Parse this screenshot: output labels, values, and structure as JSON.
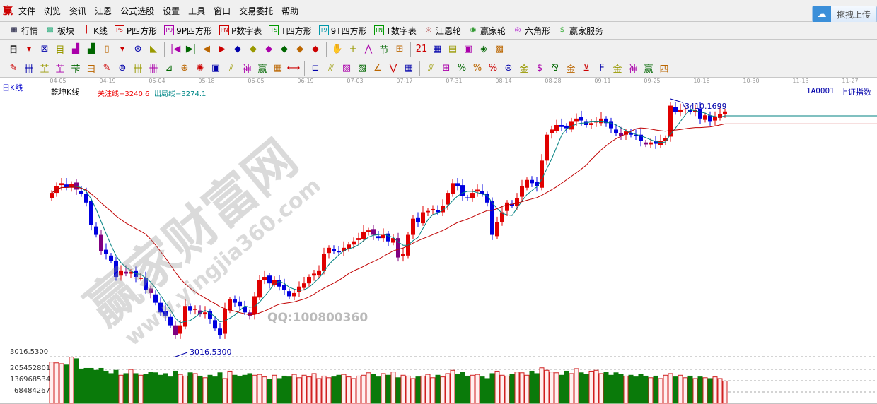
{
  "menu": {
    "logo": "赢",
    "items": [
      "文件",
      "浏览",
      "资讯",
      "江恩",
      "公式选股",
      "设置",
      "工具",
      "窗口",
      "交易委托",
      "帮助"
    ]
  },
  "upload": {
    "label": "拖拽上传",
    "icon": "cloud-icon"
  },
  "toolbar1": [
    {
      "icon": "▦",
      "label": "行情",
      "color": "#224"
    },
    {
      "icon": "▩",
      "label": "板块",
      "color": "#2a7"
    },
    {
      "icon": "┃",
      "label": "K线",
      "color": "#c00"
    },
    {
      "icon": "PS",
      "label": "P四方形",
      "color": "#c00"
    },
    {
      "icon": "P9",
      "label": "9P四方形",
      "color": "#a0a"
    },
    {
      "icon": "PN",
      "label": "P数字表",
      "color": "#c00"
    },
    {
      "icon": "TS",
      "label": "T四方形",
      "color": "#090"
    },
    {
      "icon": "T9",
      "label": "9T四方形",
      "color": "#09a"
    },
    {
      "icon": "TN",
      "label": "T数字表",
      "color": "#090"
    },
    {
      "icon": "◎",
      "label": "江恩轮",
      "color": "#a33"
    },
    {
      "icon": "◉",
      "label": "赢家轮",
      "color": "#393"
    },
    {
      "icon": "◎",
      "label": "六角形",
      "color": "#a0c"
    },
    {
      "icon": "$",
      "label": "赢家服务",
      "color": "#3a3"
    }
  ],
  "toolbar2": {
    "period": "日",
    "icons": [
      "▾",
      "⊠",
      "目",
      "▟",
      "▟",
      "▯",
      "▾",
      "⊛",
      "◣",
      "|◀",
      "▶|",
      "◀",
      "▶",
      "◆",
      "◆",
      "◆",
      "◆",
      "◆",
      "◆",
      "✋",
      "+",
      "⋀",
      "节",
      "⊞",
      "21",
      "▦",
      "▤",
      "▣",
      "◈",
      "▩"
    ]
  },
  "toolbar3": {
    "icons": [
      "✎",
      "卌",
      "芏",
      "芏",
      "芐",
      "彐",
      "✎",
      "⊜",
      "卌",
      "卌",
      "⊿",
      "⊕",
      "✺",
      "▣",
      "⫽",
      "神",
      "赢",
      "▦",
      "⟷",
      "⊏",
      "⫻",
      "▨",
      "▧",
      "∠",
      "⋁",
      "▦",
      "⫻",
      "⊞",
      "%",
      "%",
      "%",
      "⊝",
      "金",
      "$",
      "⅋",
      "金",
      "⊻",
      "F",
      "金",
      "神",
      "赢",
      "四"
    ]
  },
  "axis_dates": [
    "04-05",
    "04-19",
    "05-04",
    "05-18",
    "06-05",
    "06-19",
    "07-03",
    "07-17",
    "07-31",
    "08-14",
    "08-28",
    "09-11",
    "09-25",
    "10-16",
    "10-30",
    "11-13",
    "11-27"
  ],
  "chart_header": {
    "period_label": "日K线",
    "indicator": "乾坤K线",
    "focus_line": "关注线=3240.6",
    "exit_line": "出局线=3274.1",
    "symbol": "1A0001",
    "name": "上证指数"
  },
  "annotations": {
    "high": "3410.1699",
    "low": "3016.5300"
  },
  "volume_axis": {
    "top_label": "3016.5300",
    "ticks": [
      "205452801",
      "136968534",
      "68484267"
    ]
  },
  "watermark": {
    "title": "赢家财富网",
    "url": "www.yingjia360.com",
    "qq": "QQ:100800360"
  },
  "colors": {
    "up": "#e00000",
    "down": "#0000e0",
    "vol_up": "#d02020",
    "vol_down": "#0a7a0a",
    "ma_short": "#008080",
    "ma_long": "#c00000"
  },
  "chart_data": {
    "type": "candlestick",
    "unit": "index points",
    "closes": [
      3270,
      3280,
      3285,
      3278,
      3284,
      3275,
      3268,
      3255,
      3220,
      3205,
      3180,
      3175,
      3165,
      3140,
      3150,
      3145,
      3148,
      3140,
      3138,
      3120,
      3115,
      3100,
      3085,
      3080,
      3065,
      3050,
      3065,
      3095,
      3088,
      3090,
      3082,
      3085,
      3075,
      3060,
      3050,
      3090,
      3105,
      3100,
      3095,
      3085,
      3080,
      3110,
      3135,
      3140,
      3130,
      3135,
      3125,
      3120,
      3110,
      3115,
      3125,
      3130,
      3140,
      3145,
      3150,
      3175,
      3185,
      3180,
      3178,
      3185,
      3190,
      3195,
      3200,
      3210,
      3212,
      3205,
      3200,
      3205,
      3195,
      3200,
      3170,
      3175,
      3205,
      3230,
      3225,
      3240,
      3242,
      3245,
      3240,
      3250,
      3270,
      3285,
      3280,
      3265,
      3262,
      3270,
      3275,
      3268,
      3255,
      3205,
      3225,
      3240,
      3255,
      3250,
      3262,
      3280,
      3290,
      3285,
      3280,
      3320,
      3360,
      3368,
      3375,
      3372,
      3370,
      3380,
      3385,
      3382,
      3375,
      3378,
      3380,
      3385,
      3378,
      3370,
      3362,
      3358,
      3365,
      3360,
      3358,
      3350,
      3345,
      3348,
      3346,
      3350,
      3355,
      3405,
      3395,
      3398,
      3400,
      3395,
      3398,
      3385,
      3390,
      3380,
      3388,
      3392,
      3396
    ],
    "volumes_millions": [
      250,
      245,
      240,
      232,
      280,
      270,
      208,
      212,
      212,
      200,
      212,
      195,
      180,
      200,
      170,
      180,
      205,
      180,
      170,
      175,
      190,
      185,
      170,
      180,
      160,
      195,
      175,
      165,
      185,
      180,
      165,
      155,
      170,
      160,
      185,
      150,
      195,
      170,
      165,
      170,
      180,
      170,
      175,
      160,
      145,
      170,
      150,
      165,
      160,
      175,
      155,
      170,
      160,
      180,
      150,
      165,
      155,
      160,
      170,
      175,
      160,
      150,
      165,
      170,
      185,
      175,
      160,
      180,
      170,
      190,
      155,
      170,
      165,
      150,
      160,
      165,
      175,
      155,
      170,
      160,
      180,
      200,
      175,
      190,
      165,
      170,
      175,
      160,
      150,
      180,
      195,
      170,
      165,
      175,
      190,
      185,
      170,
      195,
      180,
      215,
      200,
      190,
      185,
      170,
      195,
      180,
      210,
      185,
      175,
      195,
      200,
      180,
      190,
      170,
      185,
      175,
      165,
      170,
      160,
      175,
      165,
      155,
      165,
      150,
      170,
      180,
      160,
      170,
      155,
      165,
      150,
      160,
      155,
      150,
      160,
      150,
      135
    ],
    "period_high": 3410.1699,
    "period_low": 3016.53
  }
}
